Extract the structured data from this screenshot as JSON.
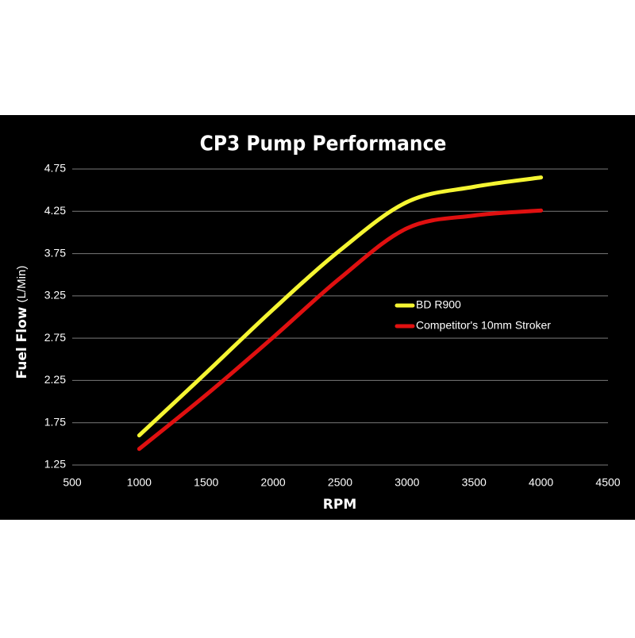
{
  "chart_data": {
    "type": "line",
    "title": "CP3 Pump Performance",
    "xlabel": "RPM",
    "ylabel": "Fuel Flow",
    "ylabel_unit": "(L/Min)",
    "x": [
      1000,
      1500,
      2000,
      2500,
      3000,
      3500,
      4000
    ],
    "series": [
      {
        "name": "BD R900",
        "color": "#f5f532",
        "values": [
          1.6,
          2.34,
          3.09,
          3.79,
          4.36,
          4.54,
          4.65
        ]
      },
      {
        "name": "Competitor's 10mm Stroker",
        "color": "#e01010",
        "values": [
          1.44,
          2.08,
          2.76,
          3.46,
          4.05,
          4.2,
          4.26
        ]
      }
    ],
    "xlim": [
      500,
      4500
    ],
    "xticks": [
      500,
      1000,
      1500,
      2000,
      2500,
      3000,
      3500,
      4000,
      4500
    ],
    "ylim": [
      1.25,
      4.75
    ],
    "yticks": [
      1.25,
      1.75,
      2.25,
      2.75,
      3.25,
      3.75,
      4.25,
      4.75
    ],
    "grid": true
  }
}
